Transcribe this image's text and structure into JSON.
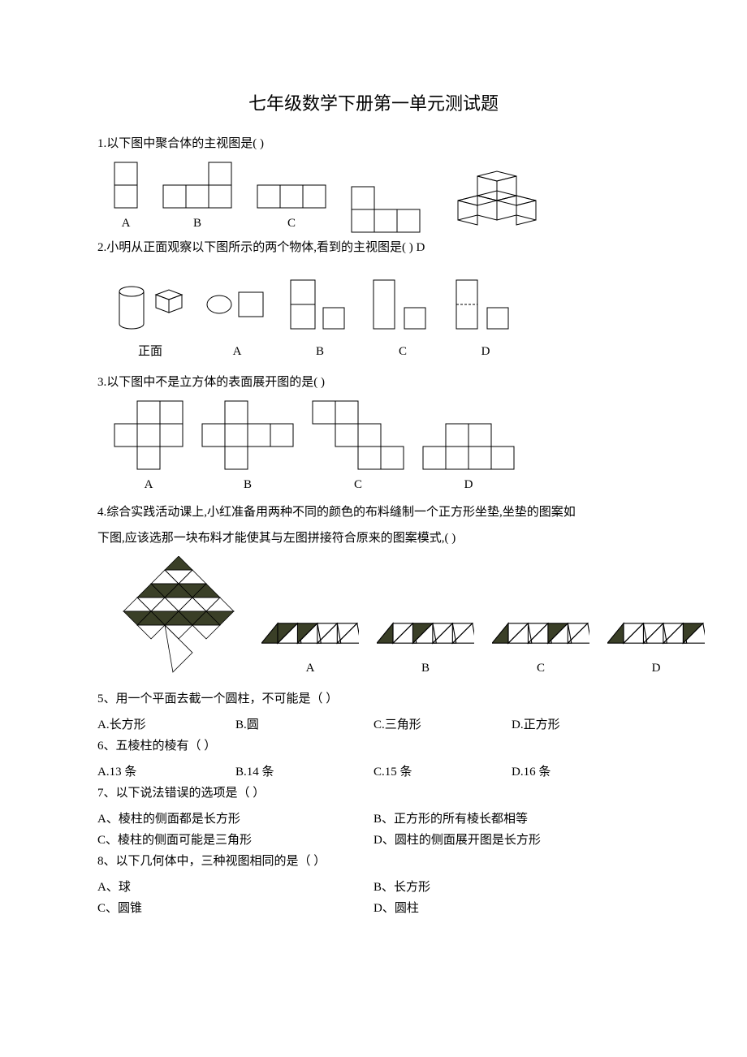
{
  "colors": {
    "stroke": "#000000",
    "bg": "#ffffff",
    "fill_dark": "#3a3f27"
  },
  "title": "七年级数学下册第一单元测试题",
  "q1": {
    "text": "1.以下图中聚合体的主视图是(          )",
    "labels": {
      "a": "A",
      "b": "B",
      "c": "C"
    },
    "figures": {
      "cell": 28,
      "a": {
        "cols": 1,
        "rows": 2
      },
      "b_bottom_cols": 3,
      "b_top_col_index": 2,
      "c_cols": 3,
      "d_top_cols": 2,
      "d_bottom_cols": 3,
      "iso_cell": 26
    }
  },
  "q2": {
    "text": "2.小明从正面观察以下图所示的两个物体,看到的主视图是(        ) D",
    "front_label": "正面",
    "labels": {
      "a": "A",
      "b": "B",
      "c": "C",
      "d": "D"
    },
    "fig": {
      "cyl_w": 30,
      "cyl_h": 46,
      "cube_s": 22,
      "sq": 30
    }
  },
  "q3": {
    "text": "3.以下图中不是立方体的表面展开图的是(        )",
    "labels": {
      "a": "A",
      "b": "B",
      "c": "C",
      "d": "D"
    },
    "cell": 28,
    "nets": {
      "a": [
        [
          1,
          0
        ],
        [
          2,
          0
        ],
        [
          0,
          1
        ],
        [
          1,
          1
        ],
        [
          2,
          1
        ],
        [
          1,
          2
        ]
      ],
      "b": [
        [
          1,
          0
        ],
        [
          0,
          1
        ],
        [
          1,
          1
        ],
        [
          2,
          1
        ],
        [
          3,
          1
        ],
        [
          1,
          2
        ]
      ],
      "c": [
        [
          0,
          0
        ],
        [
          1,
          0
        ],
        [
          1,
          1
        ],
        [
          2,
          1
        ],
        [
          2,
          2
        ],
        [
          3,
          2
        ]
      ],
      "d": [
        [
          1,
          0
        ],
        [
          2,
          0
        ],
        [
          0,
          1
        ],
        [
          1,
          1
        ],
        [
          2,
          1
        ],
        [
          3,
          1
        ]
      ]
    }
  },
  "q4": {
    "text1": "4.综合实践活动课上,小红准备用两种不同的颜色的布料缝制一个正方形坐垫,坐垫的图案如",
    "text2": "下图,应该选那一块布料才能使其与左图拼接符合原来的图案模式,(         )",
    "labels": {
      "a": "A",
      "b": "B",
      "c": "C",
      "d": "D"
    },
    "unit": 30,
    "options": {
      "a": [
        1,
        1,
        1,
        0,
        0
      ],
      "b": [
        1,
        0,
        1,
        0,
        0
      ],
      "c": [
        1,
        0,
        0,
        1,
        0
      ],
      "d": [
        1,
        0,
        0,
        0,
        1
      ]
    }
  },
  "q5": {
    "text": "5、用一个平面去截一个圆柱，不可能是（          ）",
    "opts": {
      "a": "A.长方形",
      "b": "B.圆",
      "c": "C.三角形",
      "d": "D.正方形"
    }
  },
  "q6": {
    "text": "6、五棱柱的棱有（             ）",
    "opts": {
      "a": "A.13 条",
      "b": "B.14 条",
      "c": "C.15 条",
      "d": "D.16 条"
    }
  },
  "q7": {
    "text": "7、以下说法错误的选项是（            ）",
    "opts": {
      "a": "A、棱柱的侧面都是长方形",
      "b": "B、正方形的所有棱长都相等",
      "c": "C、棱柱的侧面可能是三角形",
      "d": "D、圆柱的侧面展开图是长方形"
    }
  },
  "q8": {
    "text": "8、以下几何体中，三种视图相同的是（             ）",
    "opts": {
      "a": "A、球",
      "b": "B、长方形",
      "c": "C、圆锥",
      "d": "D、圆柱"
    }
  }
}
